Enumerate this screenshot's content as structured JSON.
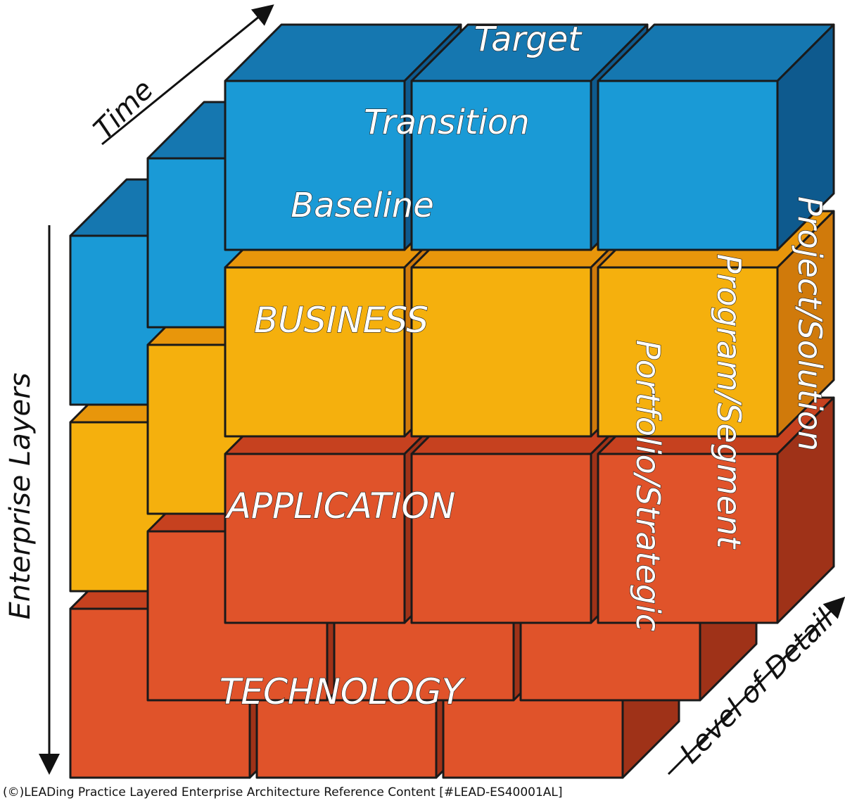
{
  "axes": {
    "time": "Time",
    "layers": "Enterprise Layers",
    "detail": "Level of Detail"
  },
  "time_states": [
    "Target",
    "Transition",
    "Baseline"
  ],
  "layers": [
    "BUSINESS",
    "APPLICATION",
    "TECHNOLOGY"
  ],
  "detail_levels": [
    "Portfolio/Strategic",
    "Program/Segment",
    "Project/Solution"
  ],
  "footer": "(©)LEADing Practice Layered Enterprise Architecture Reference Content [#LEAD-ES40001AL]"
}
